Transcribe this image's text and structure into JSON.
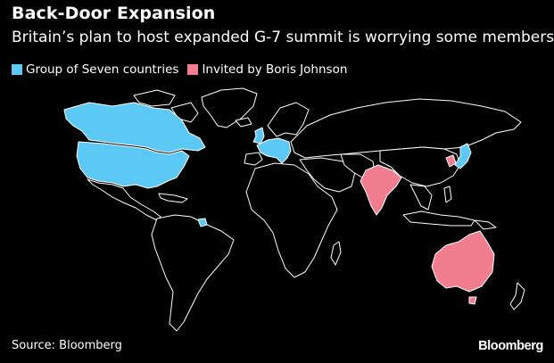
{
  "header": {
    "title": "Back-Door Expansion",
    "subtitle": "Britain’s plan to host expanded G-7 summit is worrying some members"
  },
  "legend": {
    "items": [
      {
        "label": "Group of Seven countries",
        "color": "#5bc8f5"
      },
      {
        "label": "Invited by Boris Johnson",
        "color": "#f27d8f"
      }
    ]
  },
  "map": {
    "colors": {
      "g7": "#5bc8f5",
      "invited": "#f27d8f",
      "land_fill": "#000000",
      "border": "#ffffff"
    }
  },
  "footer": {
    "source": "Source: Bloomberg",
    "brand": "Bloomberg"
  }
}
